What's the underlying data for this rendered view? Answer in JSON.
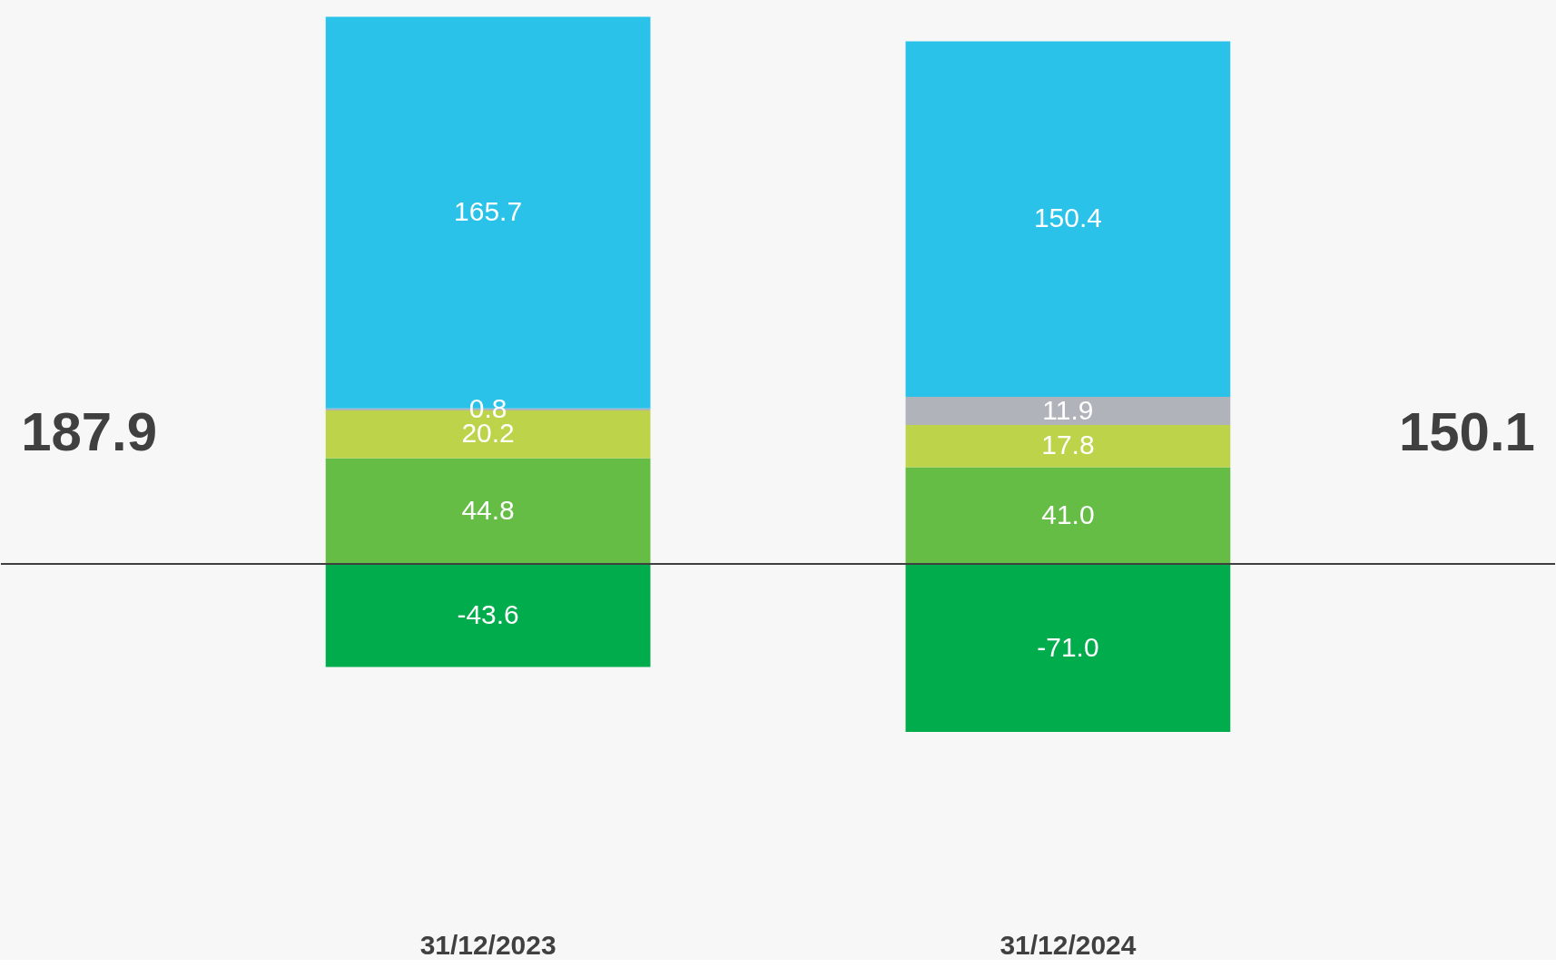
{
  "chart_data": {
    "type": "bar",
    "stacked": true,
    "categories": [
      "31/12/2023",
      "31/12/2024"
    ],
    "series": [
      {
        "color": "#66bd46",
        "values": [
          44.8,
          41.0
        ],
        "value_labels": [
          "44.8",
          "41.0"
        ]
      },
      {
        "color": "#bdd44a",
        "values": [
          20.2,
          17.8
        ],
        "value_labels": [
          "20.2",
          "17.8"
        ]
      },
      {
        "color": "#b0b3ba",
        "values": [
          0.8,
          11.9
        ],
        "value_labels": [
          "0.8",
          "11.9"
        ]
      },
      {
        "color": "#2bc2e9",
        "values": [
          165.7,
          150.4
        ],
        "value_labels": [
          "165.7",
          "150.4"
        ]
      },
      {
        "color": "#00ac4c",
        "values": [
          -43.6,
          -71.0
        ],
        "value_labels": [
          "-43.6",
          "-71.0"
        ]
      }
    ],
    "annotations": [
      "187.9",
      "150.1"
    ],
    "ref_lines": [
      {
        "axis": "y",
        "value": 0,
        "color": "#404040"
      }
    ]
  }
}
